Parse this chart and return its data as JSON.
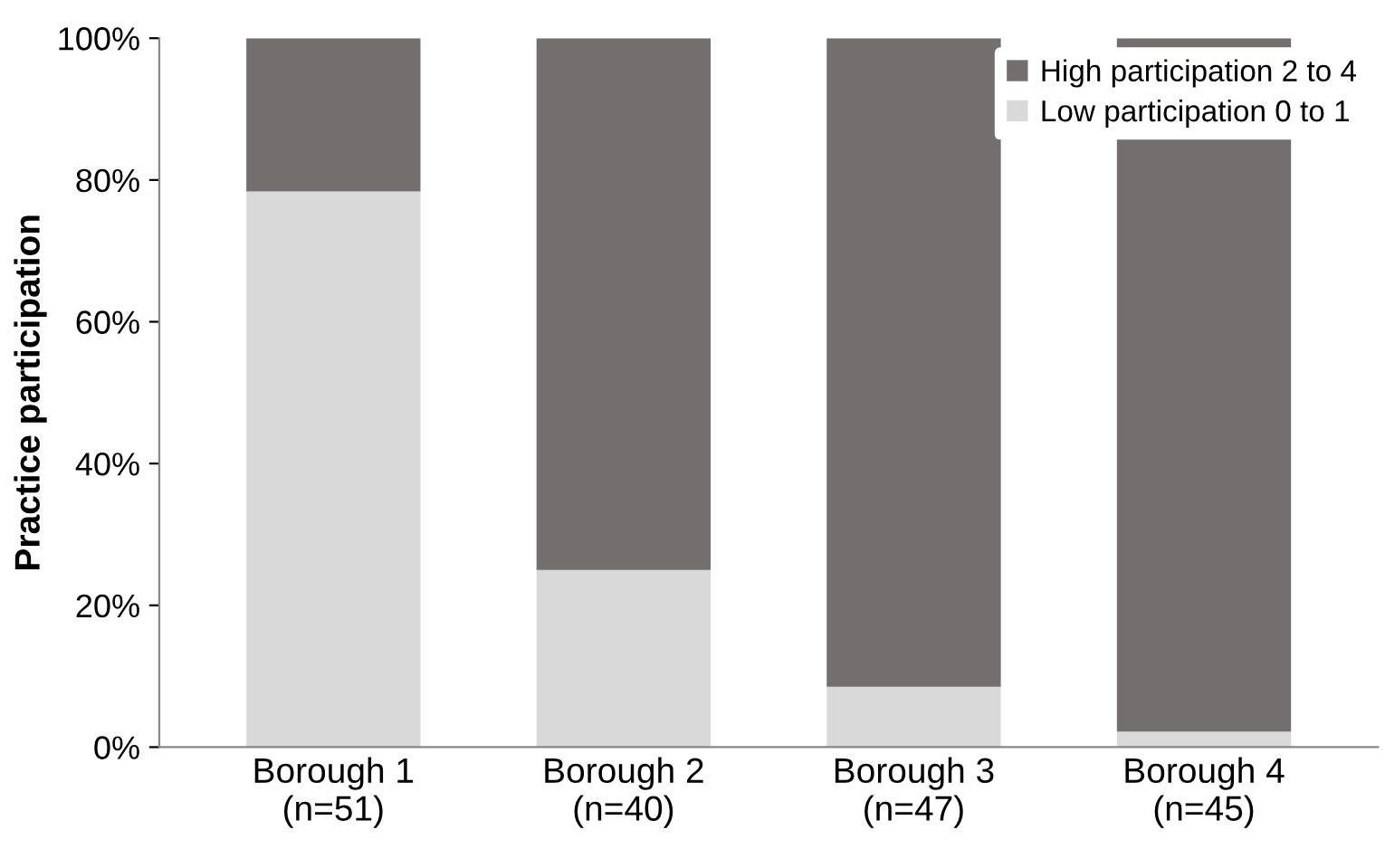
{
  "chart_data": {
    "type": "bar",
    "stacked": true,
    "ylabel": "Practice participation",
    "categories": [
      "Borough 1\n(n=51)",
      "Borough 2\n(n=40)",
      "Borough 3\n(n=47)",
      "Borough 4\n(n=45)"
    ],
    "series": [
      {
        "name": "Low participation 0 to 1",
        "color": "#d9d9d9",
        "values": [
          78.4,
          25,
          8.5,
          2.2
        ]
      },
      {
        "name": "High participation 2 to 4",
        "color": "#726f6e",
        "values": [
          21.6,
          75,
          91.5,
          97.8
        ]
      }
    ],
    "ylim": [
      0,
      100
    ],
    "yticks": [
      {
        "value": 0,
        "label": "0%"
      },
      {
        "value": 20,
        "label": "20%"
      },
      {
        "value": 40,
        "label": "40%"
      },
      {
        "value": 60,
        "label": "60%"
      },
      {
        "value": 80,
        "label": "80%"
      },
      {
        "value": 100,
        "label": "100%"
      }
    ],
    "legend": "top right",
    "grid": false
  }
}
